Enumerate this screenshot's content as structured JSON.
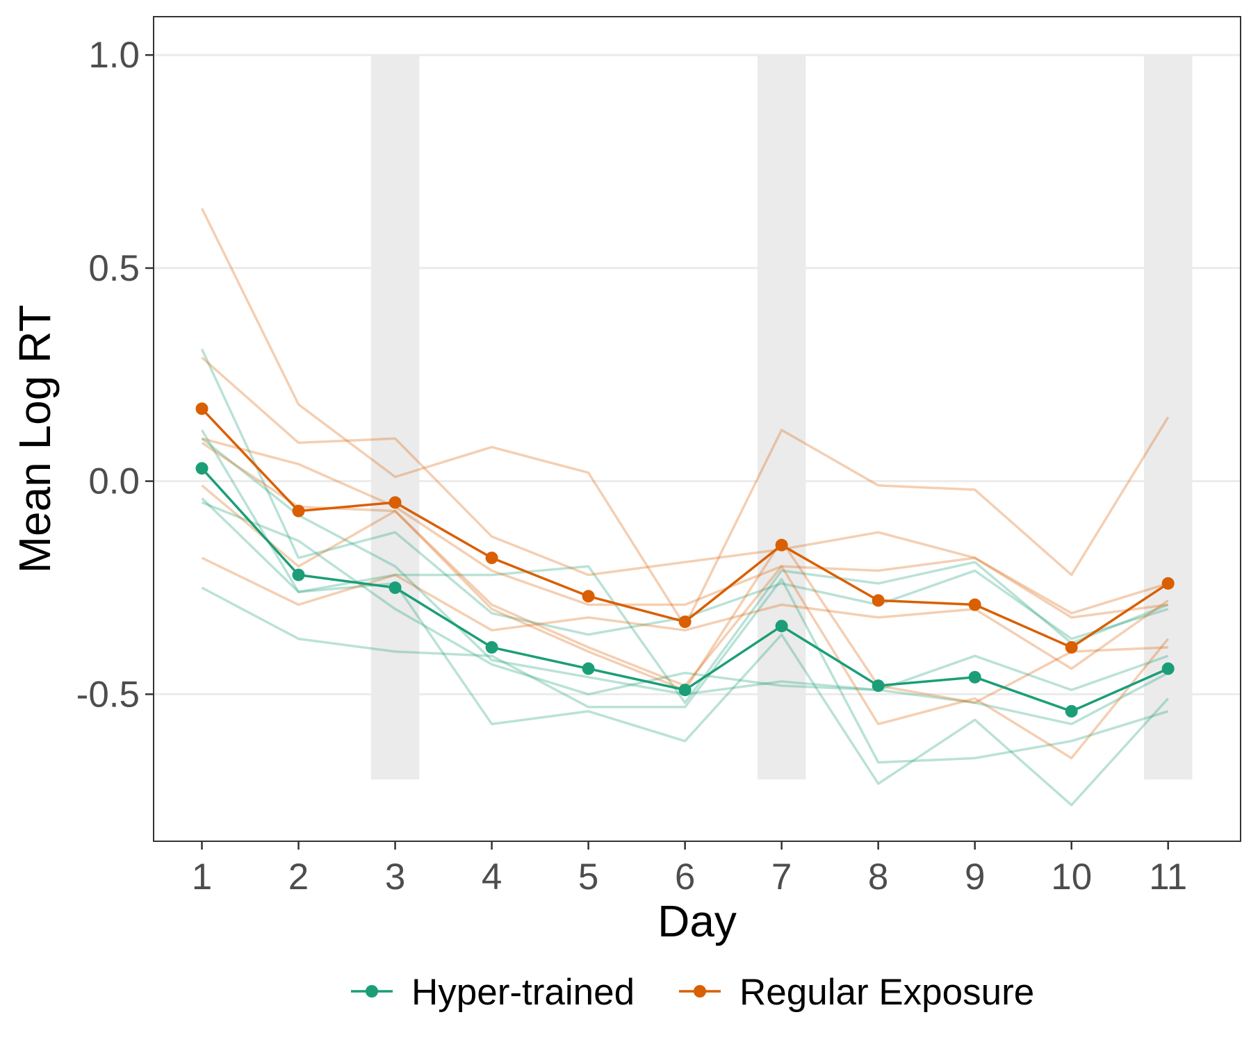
{
  "chart_data": {
    "type": "line",
    "xlabel": "Day",
    "ylabel": "Mean Log RT",
    "x_ticks": [
      "1",
      "2",
      "3",
      "4",
      "5",
      "6",
      "7",
      "8",
      "9",
      "10",
      "11"
    ],
    "y_ticks": [
      "-0.5",
      "0.0",
      "0.5",
      "1.0"
    ],
    "xlim": [
      0.5,
      11.75
    ],
    "ylim": [
      -0.845,
      1.09
    ],
    "grid": true,
    "legend_position": "bottom",
    "shaded_days": [
      3,
      7,
      11
    ],
    "shaded_range": [
      -0.7,
      1.0
    ],
    "colors": {
      "Hyper-trained": "#1b9e77",
      "Regular Exposure": "#d95f02",
      "shade": "#ebebeb"
    },
    "x": [
      1,
      2,
      3,
      4,
      5,
      6,
      7,
      8,
      9,
      10,
      11
    ],
    "series": [
      {
        "name": "Hyper-trained",
        "values": [
          0.03,
          -0.22,
          -0.25,
          -0.39,
          -0.44,
          -0.49,
          -0.34,
          -0.48,
          -0.46,
          -0.54,
          -0.44
        ]
      },
      {
        "name": "Regular Exposure",
        "values": [
          0.17,
          -0.07,
          -0.05,
          -0.18,
          -0.27,
          -0.33,
          -0.15,
          -0.28,
          -0.29,
          -0.39,
          -0.24
        ]
      }
    ],
    "individual_series": [
      {
        "group": "Hyper-trained",
        "values": [
          0.31,
          -0.18,
          -0.12,
          -0.31,
          -0.36,
          -0.32,
          -0.24,
          -0.29,
          -0.21,
          -0.37,
          -0.3
        ]
      },
      {
        "group": "Hyper-trained",
        "values": [
          0.12,
          -0.26,
          -0.22,
          -0.22,
          -0.2,
          -0.52,
          -0.21,
          -0.24,
          -0.19,
          -0.38,
          -0.29
        ]
      },
      {
        "group": "Hyper-trained",
        "values": [
          0.1,
          -0.08,
          -0.2,
          -0.42,
          -0.46,
          -0.5,
          -0.47,
          -0.49,
          -0.52,
          -0.57,
          -0.45
        ]
      },
      {
        "group": "Hyper-trained",
        "values": [
          -0.05,
          -0.14,
          -0.3,
          -0.43,
          -0.5,
          -0.45,
          -0.48,
          -0.49,
          -0.41,
          -0.49,
          -0.41
        ]
      },
      {
        "group": "Hyper-trained",
        "values": [
          -0.04,
          -0.26,
          -0.24,
          -0.57,
          -0.54,
          -0.61,
          -0.36,
          -0.71,
          -0.56,
          -0.76,
          -0.51
        ]
      },
      {
        "group": "Hyper-trained",
        "values": [
          -0.25,
          -0.37,
          -0.4,
          -0.41,
          -0.53,
          -0.53,
          -0.23,
          -0.66,
          -0.65,
          -0.61,
          -0.54
        ]
      },
      {
        "group": "Regular Exposure",
        "values": [
          0.64,
          0.18,
          0.01,
          0.08,
          0.02,
          -0.34,
          0.12,
          -0.01,
          -0.02,
          -0.22,
          0.15
        ]
      },
      {
        "group": "Regular Exposure",
        "values": [
          0.29,
          0.09,
          0.1,
          -0.13,
          -0.22,
          -0.19,
          -0.16,
          -0.12,
          -0.18,
          -0.32,
          -0.29
        ]
      },
      {
        "group": "Regular Exposure",
        "values": [
          0.1,
          0.04,
          -0.06,
          -0.21,
          -0.29,
          -0.29,
          -0.2,
          -0.21,
          -0.18,
          -0.31,
          -0.24
        ]
      },
      {
        "group": "Regular Exposure",
        "values": [
          -0.01,
          -0.2,
          -0.07,
          -0.29,
          -0.39,
          -0.48,
          -0.2,
          -0.57,
          -0.51,
          -0.65,
          -0.37
        ]
      },
      {
        "group": "Regular Exposure",
        "values": [
          -0.18,
          -0.29,
          -0.22,
          -0.35,
          -0.32,
          -0.35,
          -0.29,
          -0.32,
          -0.3,
          -0.44,
          -0.28
        ]
      },
      {
        "group": "Regular Exposure",
        "values": [
          0.09,
          -0.06,
          -0.07,
          -0.3,
          -0.4,
          -0.49,
          -0.14,
          -0.48,
          -0.52,
          -0.4,
          -0.39
        ]
      }
    ]
  }
}
